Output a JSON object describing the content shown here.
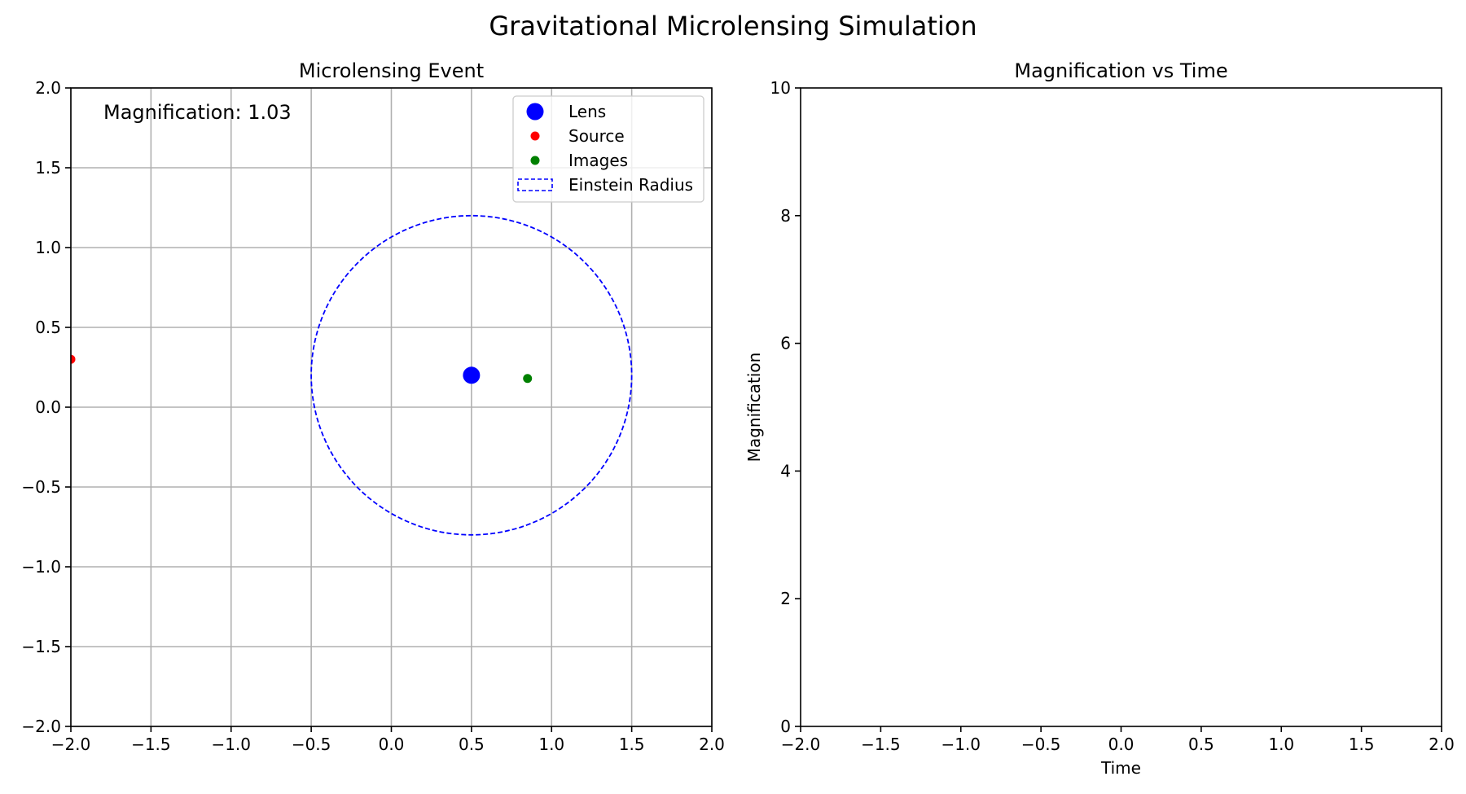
{
  "figure": {
    "suptitle": "Gravitational Microlensing Simulation"
  },
  "chart_data": [
    {
      "type": "scatter",
      "title": "Microlensing Event",
      "xlabel": "",
      "ylabel": "",
      "xlim": [
        -2,
        2
      ],
      "ylim": [
        -2,
        2
      ],
      "xticks": [
        -2.0,
        -1.5,
        -1.0,
        -0.5,
        0.0,
        0.5,
        1.0,
        1.5,
        2.0
      ],
      "yticks": [
        -2.0,
        -1.5,
        -1.0,
        -0.5,
        0.0,
        0.5,
        1.0,
        1.5,
        2.0
      ],
      "grid": true,
      "annotation": "Magnification: 1.03",
      "legend_position": "top-right",
      "series": [
        {
          "name": "Lens",
          "marker": "large-dot",
          "color": "#0000ff",
          "points": [
            [
              0.5,
              0.2
            ]
          ]
        },
        {
          "name": "Source",
          "marker": "dot",
          "color": "#ff0000",
          "points": [
            [
              -2.0,
              0.3
            ]
          ]
        },
        {
          "name": "Images",
          "marker": "dot",
          "color": "#008000",
          "points": [
            [
              0.85,
              0.18
            ]
          ]
        },
        {
          "name": "Einstein Radius",
          "marker": "dashed-circle",
          "color": "#0000ff",
          "center": [
            0.5,
            0.2
          ],
          "radius": 1.0
        }
      ]
    },
    {
      "type": "line",
      "title": "Magnification vs Time",
      "xlabel": "Time",
      "ylabel": "Magnification",
      "xlim": [
        -2,
        2
      ],
      "ylim": [
        0,
        10
      ],
      "xticks": [
        -2.0,
        -1.5,
        -1.0,
        -0.5,
        0.0,
        0.5,
        1.0,
        1.5,
        2.0
      ],
      "yticks": [
        0,
        2,
        4,
        6,
        8,
        10
      ],
      "grid": false,
      "series": []
    }
  ]
}
